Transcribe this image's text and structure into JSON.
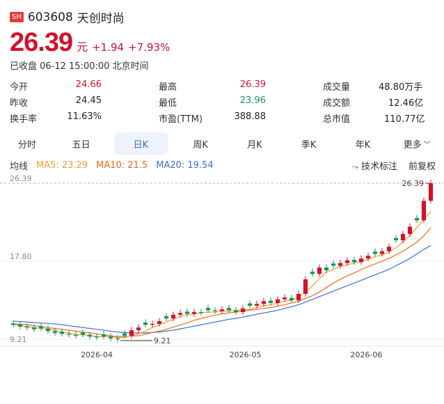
{
  "header": {
    "exchange": "SH",
    "code": "603608",
    "name": "天创时尚"
  },
  "quote": {
    "price": "26.39",
    "unit": "元",
    "change": "+1.94",
    "change_pct": "+7.93%",
    "status": "已收盘 06-12 15:00:00 北京时间"
  },
  "stats": [
    [
      {
        "label": "今开",
        "value": "24.66",
        "color": "red"
      },
      {
        "label": "最高",
        "value": "26.39",
        "color": "red"
      },
      {
        "label": "成交量",
        "value": "48.80万手",
        "color": "black"
      }
    ],
    [
      {
        "label": "昨收",
        "value": "24.45",
        "color": "black"
      },
      {
        "label": "最低",
        "value": "23.96",
        "color": "green"
      },
      {
        "label": "成交额",
        "value": "12.46亿",
        "color": "black"
      }
    ],
    [
      {
        "label": "换手率",
        "value": "11.63%",
        "color": "black"
      },
      {
        "label": "市盈(TTM)",
        "value": "388.88",
        "color": "black"
      },
      {
        "label": "总市值",
        "value": "110.77亿",
        "color": "black"
      }
    ]
  ],
  "tabs": [
    "分时",
    "五日",
    "日K",
    "周K",
    "月K",
    "季K",
    "年K",
    "更多"
  ],
  "active_tab": "日K",
  "ma": {
    "label": "均线",
    "ma5": "MA5: 23.29",
    "ma10": "MA10: 21.5",
    "ma20": "MA20: 19.54",
    "tech": "技术标注",
    "adjust": "前复权"
  },
  "colors": {
    "up": "#d0132c",
    "down": "#15955a",
    "ma5": "#f19e2e",
    "ma10": "#ee6a1a",
    "ma20": "#3b6fd3"
  },
  "chart_data": {
    "type": "candlestick",
    "y_ticks": [
      "26.39",
      "17.80",
      "9.21"
    ],
    "ylim": [
      9.21,
      26.39
    ],
    "x_labels": [
      "2026-04",
      "2026-05",
      "2026-06"
    ],
    "max_marker": "26.39",
    "min_marker": "9.21",
    "closes": [
      10.8,
      10.6,
      10.5,
      10.3,
      10.4,
      10.1,
      9.9,
      9.8,
      9.7,
      9.6,
      9.7,
      9.5,
      9.4,
      9.5,
      9.3,
      9.21,
      9.6,
      10.2,
      10.5,
      10.8,
      10.9,
      11.2,
      11.5,
      11.9,
      12.1,
      12.0,
      12.2,
      12.1,
      12.4,
      12.3,
      12.5,
      12.4,
      12.2,
      12.6,
      12.9,
      13.1,
      13.4,
      13.2,
      13.6,
      13.8,
      13.5,
      14.2,
      15.8,
      16.4,
      17.1,
      16.8,
      17.3,
      17.6,
      17.9,
      17.7,
      18.1,
      18.4,
      18.6,
      18.9,
      19.4,
      20.1,
      20.8,
      21.6,
      22.3,
      24.45,
      26.39
    ],
    "ma5": [
      10.8,
      10.7,
      10.6,
      10.5,
      10.4,
      10.3,
      10.2,
      10.0,
      9.9,
      9.7,
      9.7,
      9.6,
      9.5,
      9.5,
      9.5,
      9.4,
      9.4,
      9.6,
      9.8,
      10.1,
      10.5,
      10.8,
      11.1,
      11.4,
      11.7,
      11.9,
      12.0,
      12.1,
      12.2,
      12.2,
      12.3,
      12.3,
      12.4,
      12.4,
      12.5,
      12.7,
      12.9,
      13.0,
      13.2,
      13.4,
      13.5,
      13.8,
      14.4,
      15.1,
      15.9,
      16.6,
      16.9,
      17.2,
      17.4,
      17.6,
      17.8,
      18.0,
      18.3,
      18.5,
      18.8,
      19.3,
      19.9,
      20.6,
      21.5,
      22.4,
      23.29
    ],
    "ma10": [
      10.9,
      10.85,
      10.8,
      10.7,
      10.6,
      10.5,
      10.4,
      10.3,
      10.2,
      10.1,
      10.0,
      9.9,
      9.8,
      9.7,
      9.6,
      9.5,
      9.5,
      9.55,
      9.6,
      9.75,
      9.95,
      10.1,
      10.3,
      10.55,
      10.8,
      11.0,
      11.3,
      11.5,
      11.7,
      11.85,
      12.0,
      12.1,
      12.2,
      12.3,
      12.4,
      12.5,
      12.6,
      12.7,
      12.85,
      13.0,
      13.2,
      13.4,
      13.7,
      14.0,
      14.4,
      14.9,
      15.4,
      15.8,
      16.2,
      16.5,
      16.9,
      17.2,
      17.5,
      17.8,
      18.1,
      18.5,
      18.9,
      19.4,
      19.9,
      20.6,
      21.5
    ],
    "ma20": [
      11.2,
      11.15,
      11.1,
      11.05,
      11.0,
      10.95,
      10.9,
      10.8,
      10.7,
      10.6,
      10.5,
      10.4,
      10.3,
      10.2,
      10.1,
      10.0,
      9.95,
      9.9,
      9.9,
      9.9,
      9.95,
      10.0,
      10.1,
      10.2,
      10.35,
      10.5,
      10.65,
      10.8,
      10.95,
      11.1,
      11.25,
      11.4,
      11.5,
      11.65,
      11.8,
      11.95,
      12.1,
      12.25,
      12.4,
      12.6,
      12.8,
      13.0,
      13.3,
      13.6,
      13.9,
      14.2,
      14.5,
      14.8,
      15.1,
      15.4,
      15.7,
      16.0,
      16.3,
      16.6,
      16.9,
      17.3,
      17.7,
      18.1,
      18.6,
      19.1,
      19.54
    ]
  }
}
